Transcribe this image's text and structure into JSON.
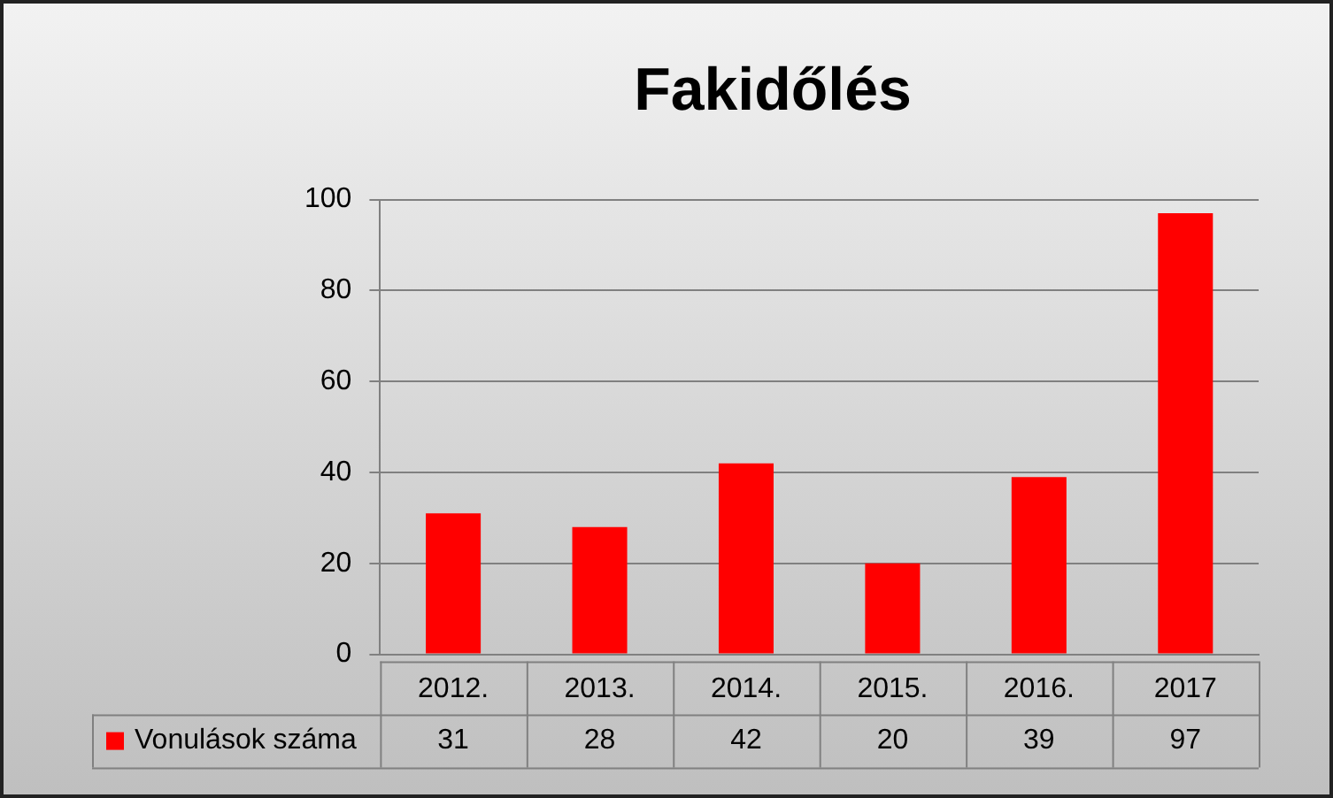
{
  "chart_data": {
    "type": "bar",
    "title": "Fakidőlés",
    "categories": [
      "2012.",
      "2013.",
      "2014.",
      "2015.",
      "2016.",
      "2017"
    ],
    "series": [
      {
        "name": "Vonulások száma",
        "color": "#ff0000",
        "values": [
          31,
          28,
          42,
          20,
          39,
          97
        ]
      }
    ],
    "ylim": [
      0,
      100
    ],
    "yticks": [
      0,
      20,
      40,
      60,
      80,
      100
    ],
    "grid": "y",
    "legend": "bottom",
    "data_labels": true
  }
}
